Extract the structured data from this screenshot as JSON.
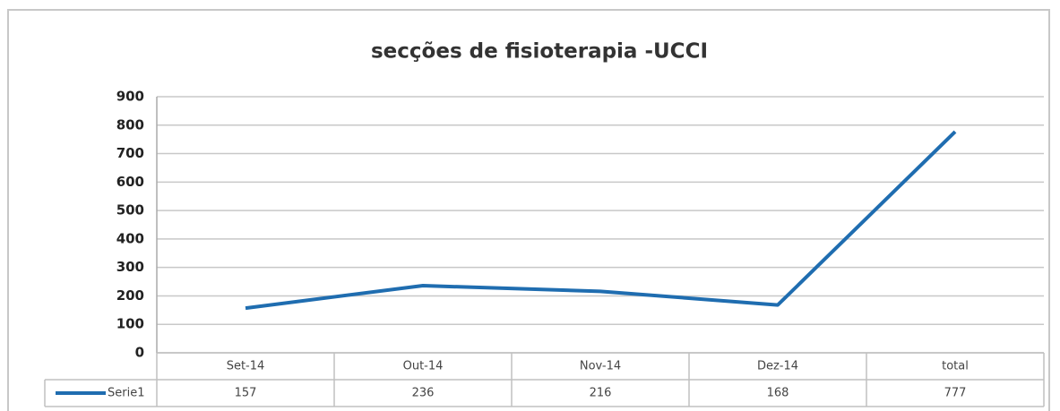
{
  "chart_data": {
    "type": "line",
    "title": "secções de fisioterapia -UCCI",
    "categories": [
      "Set-14",
      "Out-14",
      "Nov-14",
      "Dez-14",
      "total"
    ],
    "series": [
      {
        "name": "Serie1",
        "color": "#1f6db0",
        "values": [
          157,
          236,
          216,
          168,
          777
        ]
      }
    ],
    "ylim": [
      0,
      900
    ],
    "yticks": [
      0,
      100,
      200,
      300,
      400,
      500,
      600,
      700,
      800,
      900
    ],
    "grid": true,
    "data_table": true
  }
}
